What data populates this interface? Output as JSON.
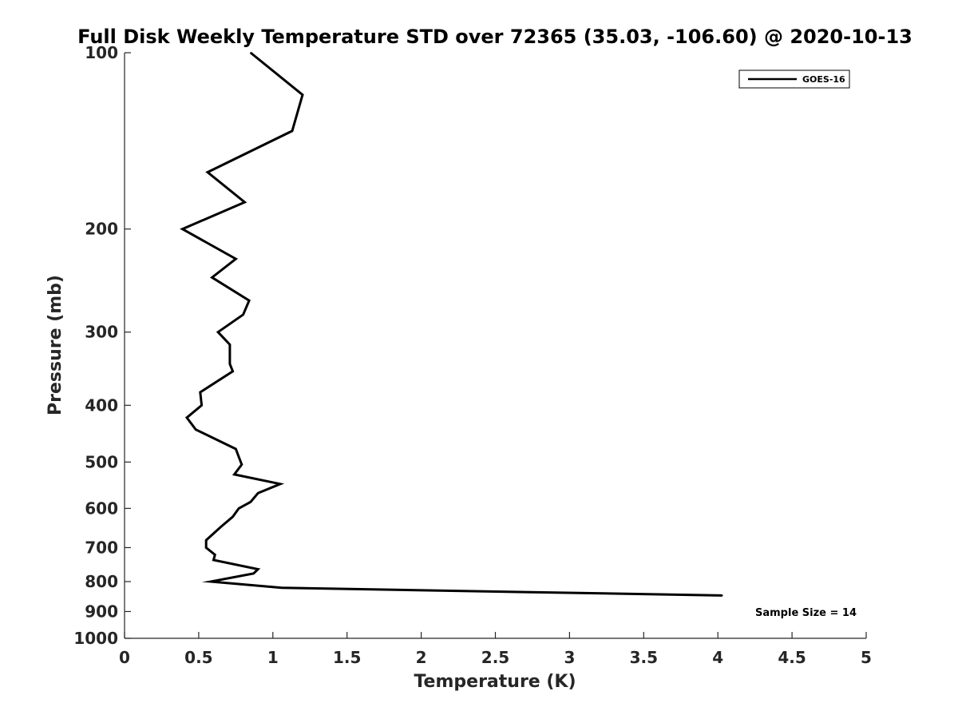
{
  "chart_data": {
    "type": "line",
    "title": "Full Disk Weekly Temperature STD over 72365 (35.03, -106.60) @ 2020-10-13",
    "xlabel": "Temperature (K)",
    "ylabel": "Pressure (mb)",
    "xlim": [
      0,
      5
    ],
    "ylim": [
      100,
      1000
    ],
    "yscale": "log",
    "yreversed": true,
    "x_ticks": [
      0,
      0.5,
      1,
      1.5,
      2,
      2.5,
      3,
      3.5,
      4,
      4.5,
      5
    ],
    "x_tick_labels": [
      "0",
      "0.5",
      "1",
      "1.5",
      "2",
      "2.5",
      "3",
      "3.5",
      "4",
      "4.5",
      "5"
    ],
    "y_ticks": [
      100,
      200,
      300,
      400,
      500,
      600,
      700,
      800,
      900,
      1000
    ],
    "y_tick_labels": [
      "100",
      "200",
      "300",
      "400",
      "500",
      "600",
      "700",
      "800",
      "900",
      "1000"
    ],
    "grid": false,
    "legend_position": "top-right",
    "series": [
      {
        "name": "GOES-16",
        "color": "#000000",
        "points": [
          {
            "temp": 0.85,
            "pressure": 100
          },
          {
            "temp": 1.2,
            "pressure": 118
          },
          {
            "temp": 1.13,
            "pressure": 136
          },
          {
            "temp": 0.56,
            "pressure": 160
          },
          {
            "temp": 0.81,
            "pressure": 180
          },
          {
            "temp": 0.39,
            "pressure": 200
          },
          {
            "temp": 0.75,
            "pressure": 225
          },
          {
            "temp": 0.59,
            "pressure": 242
          },
          {
            "temp": 0.84,
            "pressure": 265
          },
          {
            "temp": 0.8,
            "pressure": 280
          },
          {
            "temp": 0.63,
            "pressure": 300
          },
          {
            "temp": 0.71,
            "pressure": 315
          },
          {
            "temp": 0.71,
            "pressure": 340
          },
          {
            "temp": 0.73,
            "pressure": 350
          },
          {
            "temp": 0.51,
            "pressure": 380
          },
          {
            "temp": 0.52,
            "pressure": 400
          },
          {
            "temp": 0.42,
            "pressure": 420
          },
          {
            "temp": 0.48,
            "pressure": 440
          },
          {
            "temp": 0.75,
            "pressure": 475
          },
          {
            "temp": 0.77,
            "pressure": 490
          },
          {
            "temp": 0.79,
            "pressure": 505
          },
          {
            "temp": 0.74,
            "pressure": 525
          },
          {
            "temp": 1.05,
            "pressure": 545
          },
          {
            "temp": 0.9,
            "pressure": 565
          },
          {
            "temp": 0.85,
            "pressure": 585
          },
          {
            "temp": 0.77,
            "pressure": 600
          },
          {
            "temp": 0.73,
            "pressure": 620
          },
          {
            "temp": 0.65,
            "pressure": 645
          },
          {
            "temp": 0.55,
            "pressure": 680
          },
          {
            "temp": 0.55,
            "pressure": 700
          },
          {
            "temp": 0.61,
            "pressure": 720
          },
          {
            "temp": 0.6,
            "pressure": 735
          },
          {
            "temp": 0.9,
            "pressure": 762
          },
          {
            "temp": 0.87,
            "pressure": 775
          },
          {
            "temp": 0.58,
            "pressure": 800
          },
          {
            "temp": 1.06,
            "pressure": 820
          },
          {
            "temp": 4.03,
            "pressure": 845
          }
        ]
      }
    ],
    "annotation": "Sample Size = 14"
  }
}
